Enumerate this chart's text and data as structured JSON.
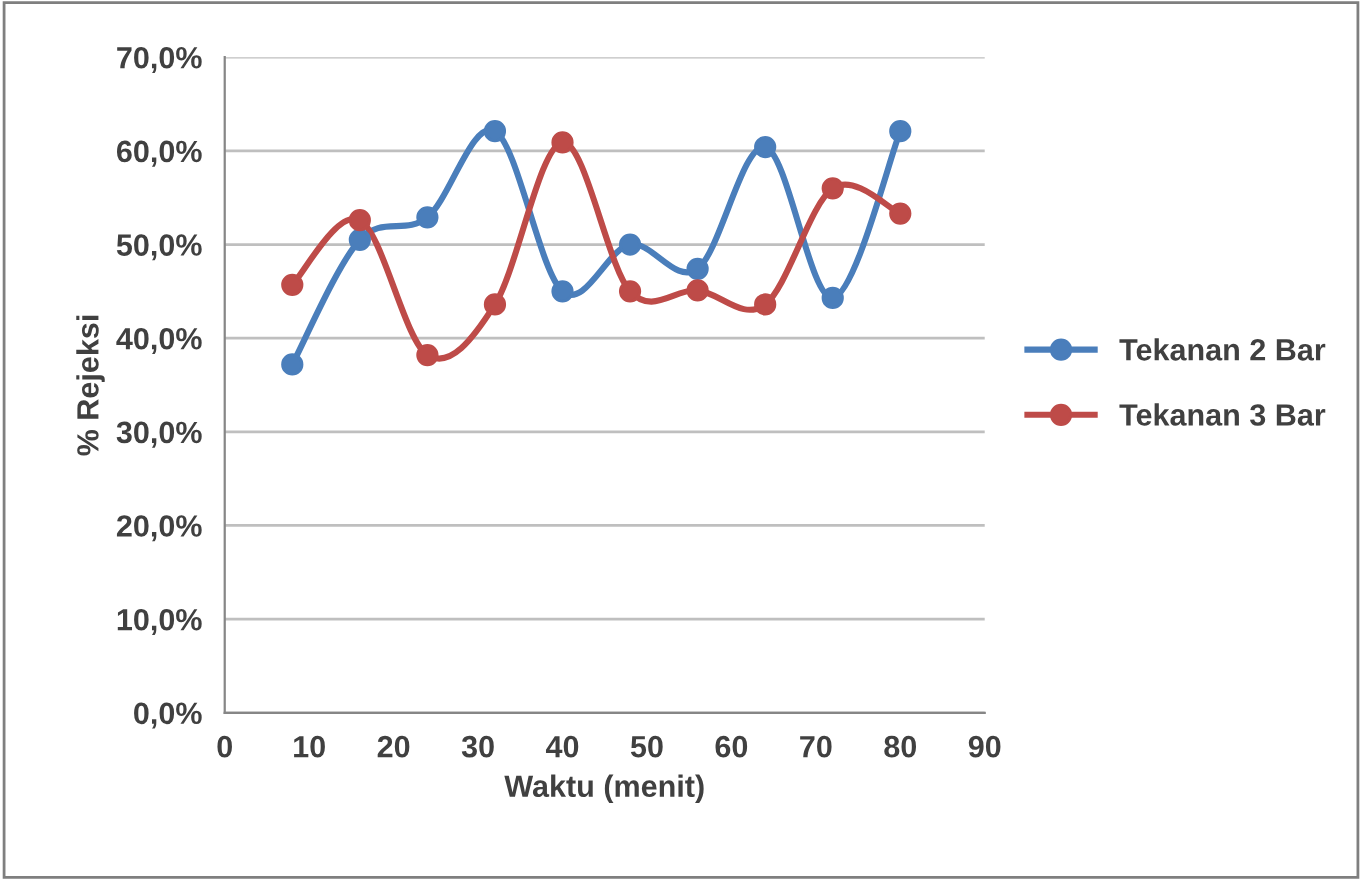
{
  "chart_data": {
    "type": "line",
    "xlabel": "Waktu (menit)",
    "ylabel": "% Rejeksi",
    "x": [
      8,
      16,
      24,
      32,
      40,
      48,
      56,
      64,
      72,
      80
    ],
    "series": [
      {
        "name": "Tekanan 2 Bar",
        "color": "#4a7ebb",
        "values": [
          37.2,
          50.5,
          52.9,
          62.1,
          45.0,
          50.0,
          47.4,
          60.4,
          44.3,
          62.1
        ]
      },
      {
        "name": "Tekanan 3 Bar",
        "color": "#be4b48",
        "values": [
          45.7,
          52.6,
          38.2,
          43.6,
          60.9,
          45.0,
          45.1,
          43.6,
          56.0,
          53.3
        ]
      }
    ],
    "xlim": [
      0,
      90
    ],
    "xticks": [
      0,
      10,
      20,
      30,
      40,
      50,
      60,
      70,
      80,
      90
    ],
    "ylim": [
      0,
      70
    ],
    "yticks": [
      {
        "value": 0,
        "label": "0,0%"
      },
      {
        "value": 10,
        "label": "10,0%"
      },
      {
        "value": 20,
        "label": "20,0%"
      },
      {
        "value": 30,
        "label": "30,0%"
      },
      {
        "value": 40,
        "label": "40,0%"
      },
      {
        "value": 50,
        "label": "50,0%"
      },
      {
        "value": 60,
        "label": "60,0%"
      },
      {
        "value": 70,
        "label": "70,0%"
      }
    ],
    "grid": "y",
    "legend": "right",
    "marker": "circle",
    "line_style": "solid"
  }
}
